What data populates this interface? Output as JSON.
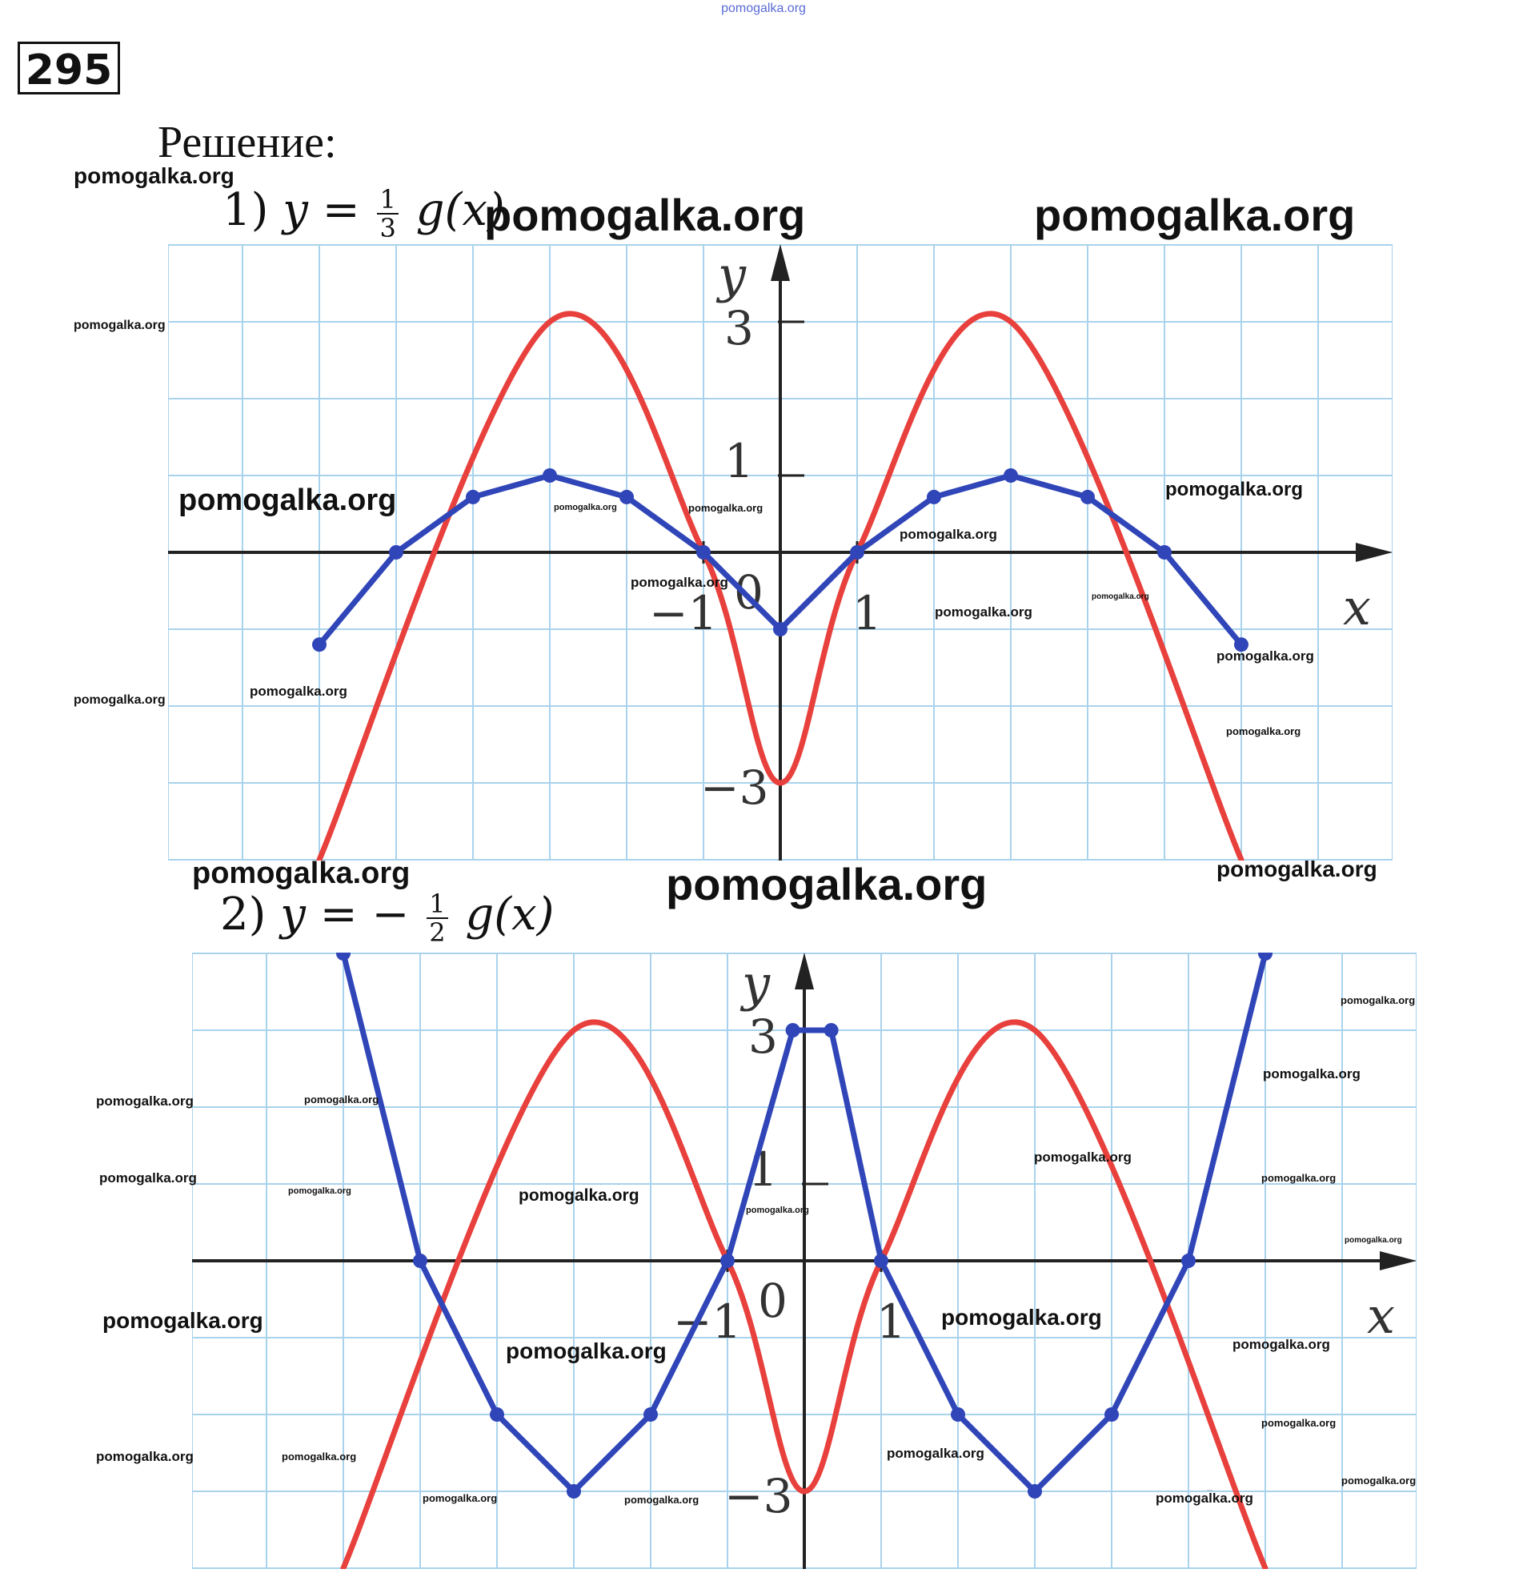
{
  "page": {
    "source_banner": "pomogalka.org",
    "problem_number": "295",
    "solution_label": "Решение:",
    "watermarks": [
      {
        "text": "pomogalka.org",
        "size": 28
      },
      {
        "text": "pomogalka.org",
        "size": 56
      },
      {
        "text": "pomogalka.org",
        "size": 56
      },
      {
        "text": "pomogalka.org",
        "size": 16
      },
      {
        "text": "pomogalka.org",
        "size": 38
      },
      {
        "text": "pomogalka.org",
        "size": 11
      },
      {
        "text": "pomogalka.org",
        "size": 13
      },
      {
        "text": "pomogalka.org",
        "size": 24
      },
      {
        "text": "pomogalka.org",
        "size": 17
      },
      {
        "text": "pomogalka.org",
        "size": 17
      },
      {
        "text": "pomogalka.org",
        "size": 17
      },
      {
        "text": "pomogalka.org",
        "size": 10
      },
      {
        "text": "pomogalka.org",
        "size": 17
      },
      {
        "text": "pomogalka.org",
        "size": 16
      },
      {
        "text": "pomogalka.org",
        "size": 17
      },
      {
        "text": "pomogalka.org",
        "size": 13
      },
      {
        "text": "pomogalka.org",
        "size": 38
      },
      {
        "text": "pomogalka.org",
        "size": 56
      },
      {
        "text": "pomogalka.org",
        "size": 28
      },
      {
        "text": "pomogalka.org",
        "size": 13
      },
      {
        "text": "pomogalka.org",
        "size": 17
      },
      {
        "text": "pomogalka.org",
        "size": 13
      },
      {
        "text": "pomogalka.org",
        "size": 17
      },
      {
        "text": "pomogalka.org",
        "size": 11
      },
      {
        "text": "pomogalka.org",
        "size": 17
      },
      {
        "text": "pomogalka.org",
        "size": 21
      },
      {
        "text": "pomogalka.org",
        "size": 11
      },
      {
        "text": "pomogalka.org",
        "size": 17
      },
      {
        "text": "pomogalka.org",
        "size": 10
      },
      {
        "text": "pomogalka.org",
        "size": 13
      },
      {
        "text": "pomogalka.org",
        "size": 28
      },
      {
        "text": "pomogalka.org",
        "size": 28
      },
      {
        "text": "pomogalka.org",
        "size": 28
      },
      {
        "text": "pomogalka.org",
        "size": 17
      },
      {
        "text": "pomogalka.org",
        "size": 17
      },
      {
        "text": "pomogalka.org",
        "size": 13
      },
      {
        "text": "pomogalka.org",
        "size": 13
      },
      {
        "text": "pomogalka.org",
        "size": 13
      },
      {
        "text": "pomogalka.org",
        "size": 17
      },
      {
        "text": "pomogalka.org",
        "size": 13
      },
      {
        "text": "pomogalka.org",
        "size": 13
      },
      {
        "text": "pomogalka.org",
        "size": 13
      },
      {
        "text": "pomogalka.org",
        "size": 17
      }
    ]
  },
  "chart_data": [
    {
      "type": "line",
      "part_label": "1)",
      "formula": {
        "lhs": "y",
        "eq": "=",
        "num": "1",
        "den": "3",
        "rhs": "g(x)"
      },
      "xlabel": "x",
      "ylabel": "y",
      "xlim": [
        -8,
        8
      ],
      "ylim": [
        -4,
        4
      ],
      "tick_labels": {
        "x_neg1": "−1",
        "x_pos1": "1",
        "origin": "0",
        "y_pos1": "1",
        "y_pos3": "3",
        "y_neg3": "−3"
      },
      "grid": true,
      "colors": {
        "g": "#e8403c",
        "transformed": "#2f45b8",
        "grid": "#a9d3ec",
        "axis": "#222222"
      },
      "series": [
        {
          "name": "g(x)",
          "style": "curve",
          "x": [
            -6,
            -3,
            -1,
            0,
            1,
            3,
            6
          ],
          "y": [
            -4,
            3,
            0,
            -3,
            0,
            3,
            -4
          ]
        },
        {
          "name": "1/3 g(x)",
          "style": "polyline",
          "x": [
            -6,
            -5,
            -4,
            -3,
            -2,
            -1,
            0,
            1,
            2,
            3,
            4,
            5,
            6
          ],
          "y": [
            -1.2,
            0,
            0.72,
            1,
            0.72,
            0,
            -1,
            0,
            0.72,
            1,
            0.72,
            0,
            -1.2
          ]
        }
      ]
    },
    {
      "type": "line",
      "part_label": "2)",
      "formula": {
        "lhs": "y",
        "eq": "= −",
        "num": "1",
        "den": "2",
        "rhs": "g(x)"
      },
      "xlabel": "x",
      "ylabel": "y",
      "xlim": [
        -8,
        8
      ],
      "ylim": [
        -4,
        4
      ],
      "tick_labels": {
        "x_neg1": "−1",
        "x_pos1": "1",
        "origin": "0",
        "y_pos1": "1",
        "y_pos3": "3",
        "y_neg3": "−3"
      },
      "grid": true,
      "colors": {
        "g": "#e8403c",
        "transformed": "#2f45b8",
        "grid": "#a9d3ec",
        "axis": "#222222"
      },
      "series": [
        {
          "name": "g(x)",
          "style": "curve",
          "x": [
            -6,
            -3,
            -1,
            0,
            1,
            3,
            6
          ],
          "y": [
            -4,
            3,
            0,
            -3,
            0,
            3,
            -4
          ]
        },
        {
          "name": "−1/2 g(x)",
          "style": "polyline",
          "x": [
            -6,
            -5,
            -4,
            -3,
            -2,
            -1,
            -0.15,
            0.35,
            1,
            2,
            3,
            4,
            5,
            6
          ],
          "y": [
            4,
            0,
            -2,
            -3,
            -2,
            0,
            3,
            3,
            0,
            -2,
            -3,
            -2,
            0,
            4
          ]
        }
      ]
    }
  ]
}
